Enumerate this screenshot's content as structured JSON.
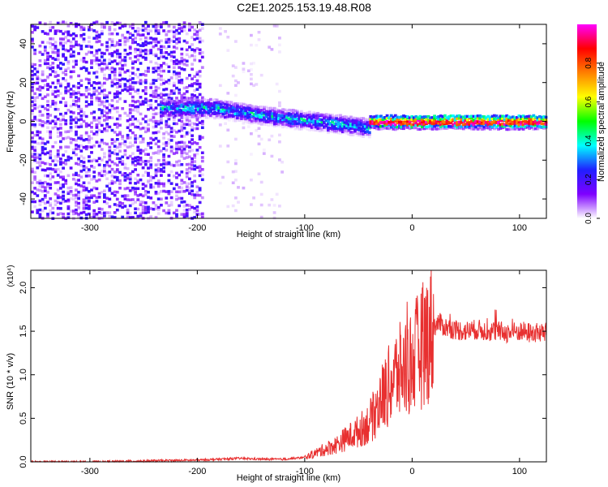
{
  "page_title": "C2E1.2025.153.19.48.R08",
  "chart_data": [
    {
      "type": "heatmap",
      "xlabel": "Height of straight line (km)",
      "ylabel": "Frequency (Hz)",
      "xlim": [
        -355,
        125
      ],
      "ylim": [
        -50,
        50
      ],
      "xticks": [
        -300,
        -200,
        -100,
        0,
        100
      ],
      "yticks": [
        -40,
        -20,
        0,
        20,
        40
      ],
      "colorbar": {
        "label": "Normalized spectral amplitude",
        "range": [
          0.0,
          1.0
        ],
        "ticks": [
          0.0,
          0.2,
          0.4,
          0.6,
          0.8
        ],
        "tick_labels": [
          "0.0",
          "0.2",
          "0.4",
          "0.6",
          "0.8"
        ],
        "colormap": [
          "#ffffff",
          "#7e00ff",
          "#2020ff",
          "#00ffff",
          "#00ff00",
          "#ffff00",
          "#ff8000",
          "#ff0000",
          "#ff00ff"
        ]
      },
      "features": [
        {
          "x_range": [
            -355,
            -195
          ],
          "freq_range": [
            -50,
            50
          ],
          "amplitude": 0.15,
          "note": "broadband noise"
        },
        {
          "x_range": [
            -180,
            -120
          ],
          "freq_range": [
            -50,
            50
          ],
          "amplitude": 0.05,
          "note": "faint vertical streaks"
        },
        {
          "x_range": [
            -235,
            -40
          ],
          "center_freq": [
            7,
            7,
            3,
            0,
            -3
          ],
          "amplitude": 0.35
        },
        {
          "x_range": [
            -40,
            125
          ],
          "center_freq": [
            0,
            0
          ],
          "amplitude": 0.85
        }
      ]
    },
    {
      "type": "line",
      "xlabel": "Height of straight line (km)",
      "ylabel": "SNR (10 * v/v)",
      "y_multiplier": "(x10⁴)",
      "xlim": [
        -355,
        125
      ],
      "ylim": [
        0,
        2.2
      ],
      "xticks": [
        -300,
        -200,
        -100,
        0,
        100
      ],
      "yticks": [
        0.0,
        0.5,
        1.0,
        1.5,
        2.0
      ],
      "ytick_labels": [
        "0.0",
        "0.5",
        "1.0",
        "1.5",
        "2.0"
      ],
      "series": [
        {
          "color": "#e83030",
          "x": [
            -355,
            -300,
            -250,
            -200,
            -180,
            -160,
            -140,
            -120,
            -100,
            -90,
            -80,
            -70,
            -60,
            -50,
            -40,
            -35,
            -30,
            -25,
            -20,
            -15,
            -10,
            -5,
            0,
            5,
            10,
            15,
            20,
            25,
            30,
            40,
            50,
            60,
            70,
            80,
            90,
            100,
            110,
            125
          ],
          "y": [
            0.0,
            0.0,
            0.01,
            0.02,
            0.03,
            0.04,
            0.03,
            0.03,
            0.05,
            0.1,
            0.15,
            0.2,
            0.28,
            0.35,
            0.45,
            0.55,
            0.7,
            0.8,
            0.9,
            1.0,
            1.05,
            1.1,
            1.15,
            1.25,
            1.35,
            1.45,
            1.55,
            1.6,
            1.55,
            1.52,
            1.5,
            1.52,
            1.5,
            1.5,
            1.48,
            1.5,
            1.48,
            1.48
          ]
        }
      ]
    }
  ]
}
